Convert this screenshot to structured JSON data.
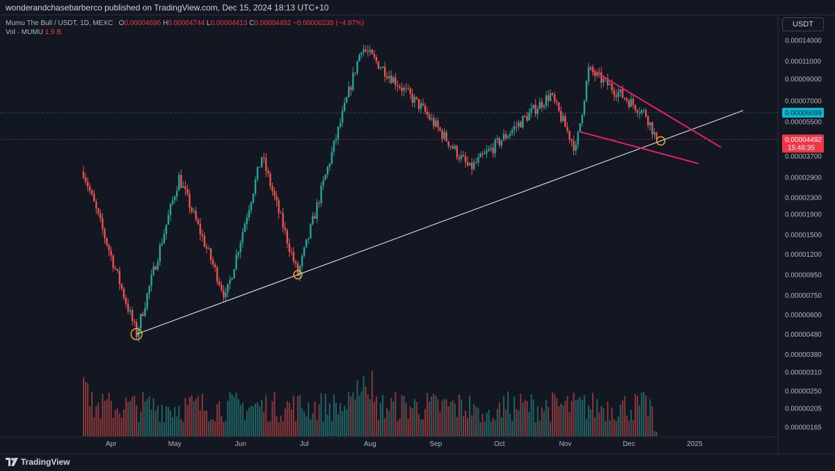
{
  "header": {
    "publish_text": "wonderandchasebarberco published on TradingView.com, Dec 15, 2024 18:13 UTC+10"
  },
  "legend": {
    "symbol": "Mumu The Bull / USDT, 1D, MEXC",
    "open_label": "O",
    "open": "0.00004696",
    "high_label": "H",
    "high": "0.00004744",
    "low_label": "L",
    "low": "0.00004413",
    "close_label": "C",
    "close": "0.00004492",
    "change": "−0.00000235 (−4.97%)",
    "volume_label": "Vol · MUMU",
    "volume": "1.9 B"
  },
  "currency_badge": "USDT",
  "brand": "TradingView",
  "chart_data": {
    "type": "candlestick",
    "y_scale": "log",
    "y_ticks": [
      "0.00014000",
      "0.00011000",
      "0.00009000",
      "0.00007000",
      "0.00005500",
      "0.00004492",
      "0.00003700",
      "0.00002900",
      "0.00002300",
      "0.00001900",
      "0.00001500",
      "0.00001200",
      "0.00000950",
      "0.00000750",
      "0.00000600",
      "0.00000480",
      "0.00000380",
      "0.00000310",
      "0.00000250",
      "0.00000205",
      "0.00000165"
    ],
    "y_tick_values": [
      0.00014,
      0.00011,
      9e-05,
      7e-05,
      5.5e-05,
      4.492e-05,
      3.7e-05,
      2.9e-05,
      2.3e-05,
      1.9e-05,
      1.5e-05,
      1.2e-05,
      9.5e-06,
      7.5e-06,
      6e-06,
      4.8e-06,
      3.8e-06,
      3.1e-06,
      2.5e-06,
      2.05e-06,
      1.65e-06
    ],
    "x_ticks": [
      "Apr",
      "May",
      "Jun",
      "Jul",
      "Aug",
      "Sep",
      "Oct",
      "Nov",
      "Dec",
      "2025"
    ],
    "price_labels": {
      "horizontal_level": "0.00006099",
      "last_price": "0.00004492",
      "countdown": "15:46:35"
    },
    "key_points": [
      {
        "date": "Mar 19",
        "close": 3.1e-05
      },
      {
        "date": "Apr 13",
        "low": 4.8e-06
      },
      {
        "date": "May 03",
        "high": 2.9e-05
      },
      {
        "date": "May 25",
        "low": 7.3e-06
      },
      {
        "date": "Jun 11",
        "high": 3.7e-05
      },
      {
        "date": "Jun 28",
        "low": 9.5e-06
      },
      {
        "date": "Jul 28",
        "high": 0.00013
      },
      {
        "date": "Aug 25",
        "high": 6.5e-05
      },
      {
        "date": "Sep 17",
        "low": 3.2e-05
      },
      {
        "date": "Oct 25",
        "high": 7.5e-05
      },
      {
        "date": "Nov 06",
        "low": 4e-05
      },
      {
        "date": "Nov 12",
        "high": 0.0001
      },
      {
        "date": "Dec 09",
        "high": 6e-05
      },
      {
        "date": "Dec 14",
        "close": 4.492e-05
      }
    ],
    "annotations": {
      "uptrend_support": "white line connecting higher lows from Apr through Dec",
      "falling_wedge": "two magenta converging lines from mid-Nov",
      "touch_points": 3
    },
    "colors": {
      "up": "#26a69a",
      "down": "#ef5350",
      "trendline": "#d1d4dc",
      "wedge": "#e91e63",
      "marker": "#f5a623",
      "level_line": "#22ab94",
      "level_badge": "#00bcd4",
      "last_badge": "#f23645"
    }
  }
}
